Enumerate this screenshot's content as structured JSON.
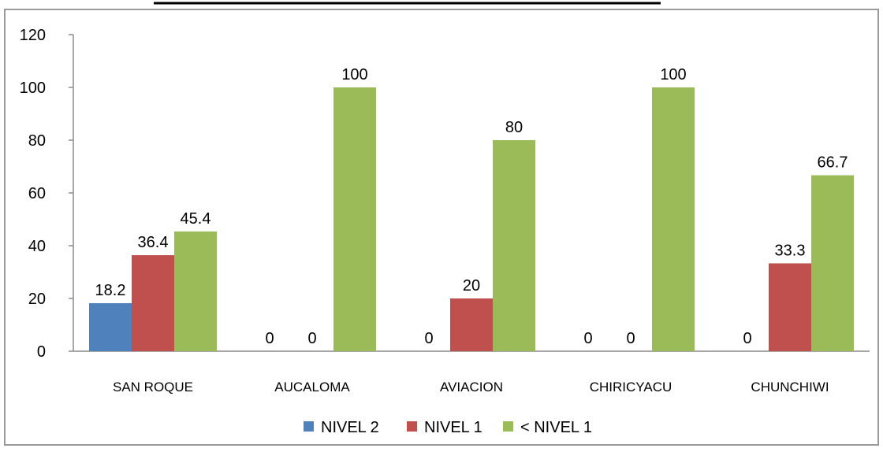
{
  "chart_data": {
    "type": "bar",
    "title": "",
    "xlabel": "",
    "ylabel": "",
    "categories": [
      "SAN ROQUE",
      "AUCALOMA",
      "AVIACION",
      "CHIRICYACU",
      "CHUNCHIWI"
    ],
    "series": [
      {
        "name": "NIVEL 2",
        "color": "#4f81bd",
        "values": [
          18.2,
          0,
          0,
          0,
          0
        ],
        "labels": [
          "18.2",
          "0",
          "0",
          "0",
          "0"
        ]
      },
      {
        "name": "NIVEL 1",
        "color": "#c0504d",
        "values": [
          36.4,
          0,
          20,
          0,
          33.3
        ],
        "labels": [
          "36.4",
          "0",
          "20",
          "0",
          "33.3"
        ]
      },
      {
        "name": "< NIVEL 1",
        "color": "#9bbb59",
        "values": [
          45.4,
          100,
          80,
          100,
          66.7
        ],
        "labels": [
          "45.4",
          "100",
          "80",
          "100",
          "66.7"
        ]
      }
    ],
    "ylim": [
      0,
      120
    ],
    "yticks": [
      0,
      20,
      40,
      60,
      80,
      100,
      120
    ],
    "grid": false,
    "legend": "bottom"
  }
}
